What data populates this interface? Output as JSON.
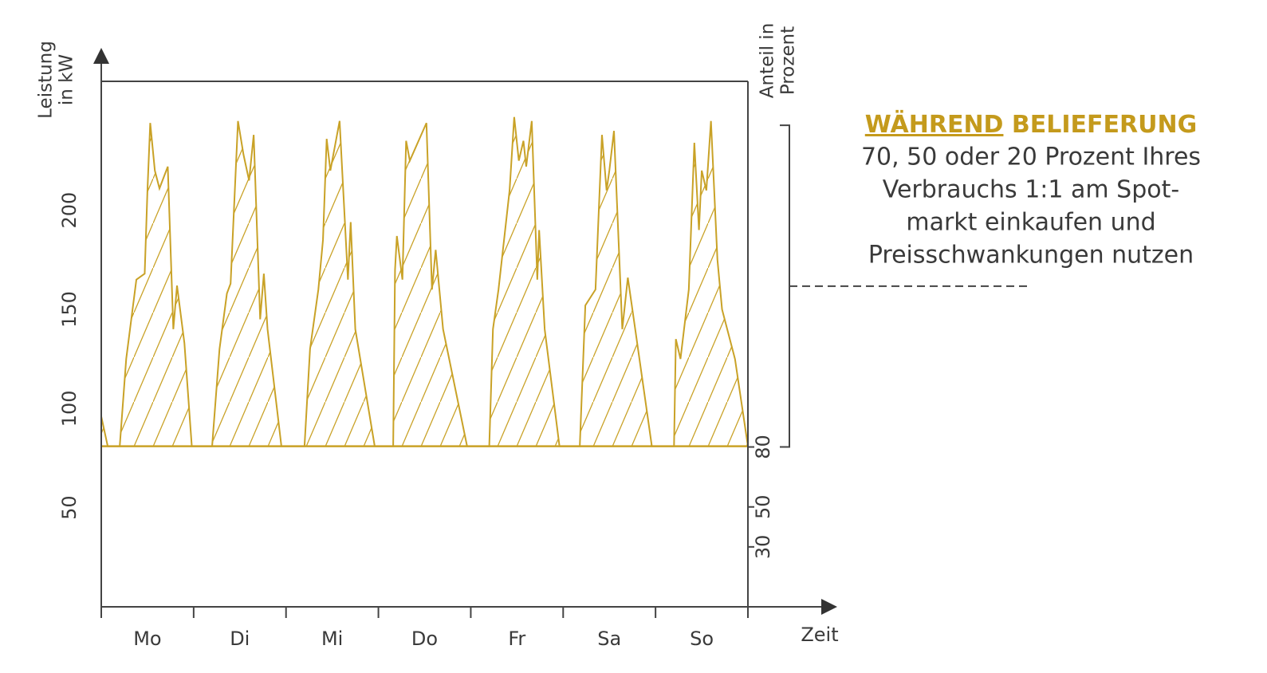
{
  "chart_data": {
    "type": "area",
    "y_label": [
      "Leistung",
      "in kW"
    ],
    "y2_label": [
      "Anteil in",
      "Prozent"
    ],
    "x_label": "Zeit",
    "categories": [
      "Mo",
      "Di",
      "Mi",
      "Do",
      "Fr",
      "Sa",
      "So"
    ],
    "xlim": [
      0,
      7
    ],
    "ylim": [
      0,
      265
    ],
    "yticks": [
      50,
      100,
      150,
      200
    ],
    "y2lim": [
      0,
      263
    ],
    "y2ticks": [
      30,
      50,
      80
    ],
    "baseline": 81,
    "hatch": true,
    "series": [
      {
        "color": "#c9a227",
        "x": [
          0,
          0.07,
          0.2,
          0.27,
          0.38,
          0.47,
          0.5,
          0.53,
          0.58,
          0.63,
          0.72,
          0.78,
          0.82,
          0.9,
          0.98,
          1.2,
          1.28,
          1.36,
          1.4,
          1.48,
          1.54,
          1.6,
          1.65,
          1.72,
          1.76,
          1.8,
          1.95,
          2.2,
          2.26,
          2.35,
          2.4,
          2.44,
          2.48,
          2.58,
          2.67,
          2.7,
          2.75,
          2.96,
          3.16,
          3.18,
          3.2,
          3.26,
          3.3,
          3.34,
          3.52,
          3.58,
          3.62,
          3.7,
          3.96,
          4.2,
          4.24,
          4.3,
          4.42,
          4.47,
          4.52,
          4.57,
          4.6,
          4.66,
          4.72,
          4.74,
          4.8,
          4.96,
          5.18,
          5.24,
          5.35,
          5.42,
          5.47,
          5.5,
          5.55,
          5.64,
          5.7,
          5.78,
          5.96,
          6.2,
          6.22,
          6.27,
          6.36,
          6.42,
          6.47,
          6.5,
          6.55,
          6.6,
          6.67,
          6.72,
          6.86,
          7
        ],
        "values": [
          96,
          81,
          81,
          125,
          165,
          168,
          210,
          244,
          220,
          211,
          222,
          140,
          162,
          133,
          81,
          81,
          130,
          158,
          163,
          245,
          228,
          215,
          238,
          145,
          168,
          140,
          81,
          81,
          130,
          160,
          185,
          236,
          220,
          245,
          165,
          194,
          140,
          81,
          81,
          170,
          187,
          165,
          235,
          225,
          244,
          160,
          180,
          140,
          81,
          81,
          140,
          160,
          210,
          247,
          225,
          235,
          222,
          245,
          165,
          190,
          140,
          81,
          81,
          152,
          160,
          238,
          210,
          220,
          240,
          140,
          166,
          140,
          81,
          81,
          135,
          125,
          160,
          234,
          190,
          220,
          210,
          245,
          175,
          150,
          125,
          81
        ]
      }
    ],
    "annotation": {
      "emphasis": "WÄHREND",
      "title": "BELIEFERUNG",
      "lines": [
        "70, 50 oder 20 Prozent Ihres",
        "Verbrauchs 1:1 am Spot-",
        "markt einkaufen und",
        "Preisschwankungen nutzen"
      ],
      "bracket": [
        80,
        241
      ],
      "color": "#c49a1c"
    }
  }
}
